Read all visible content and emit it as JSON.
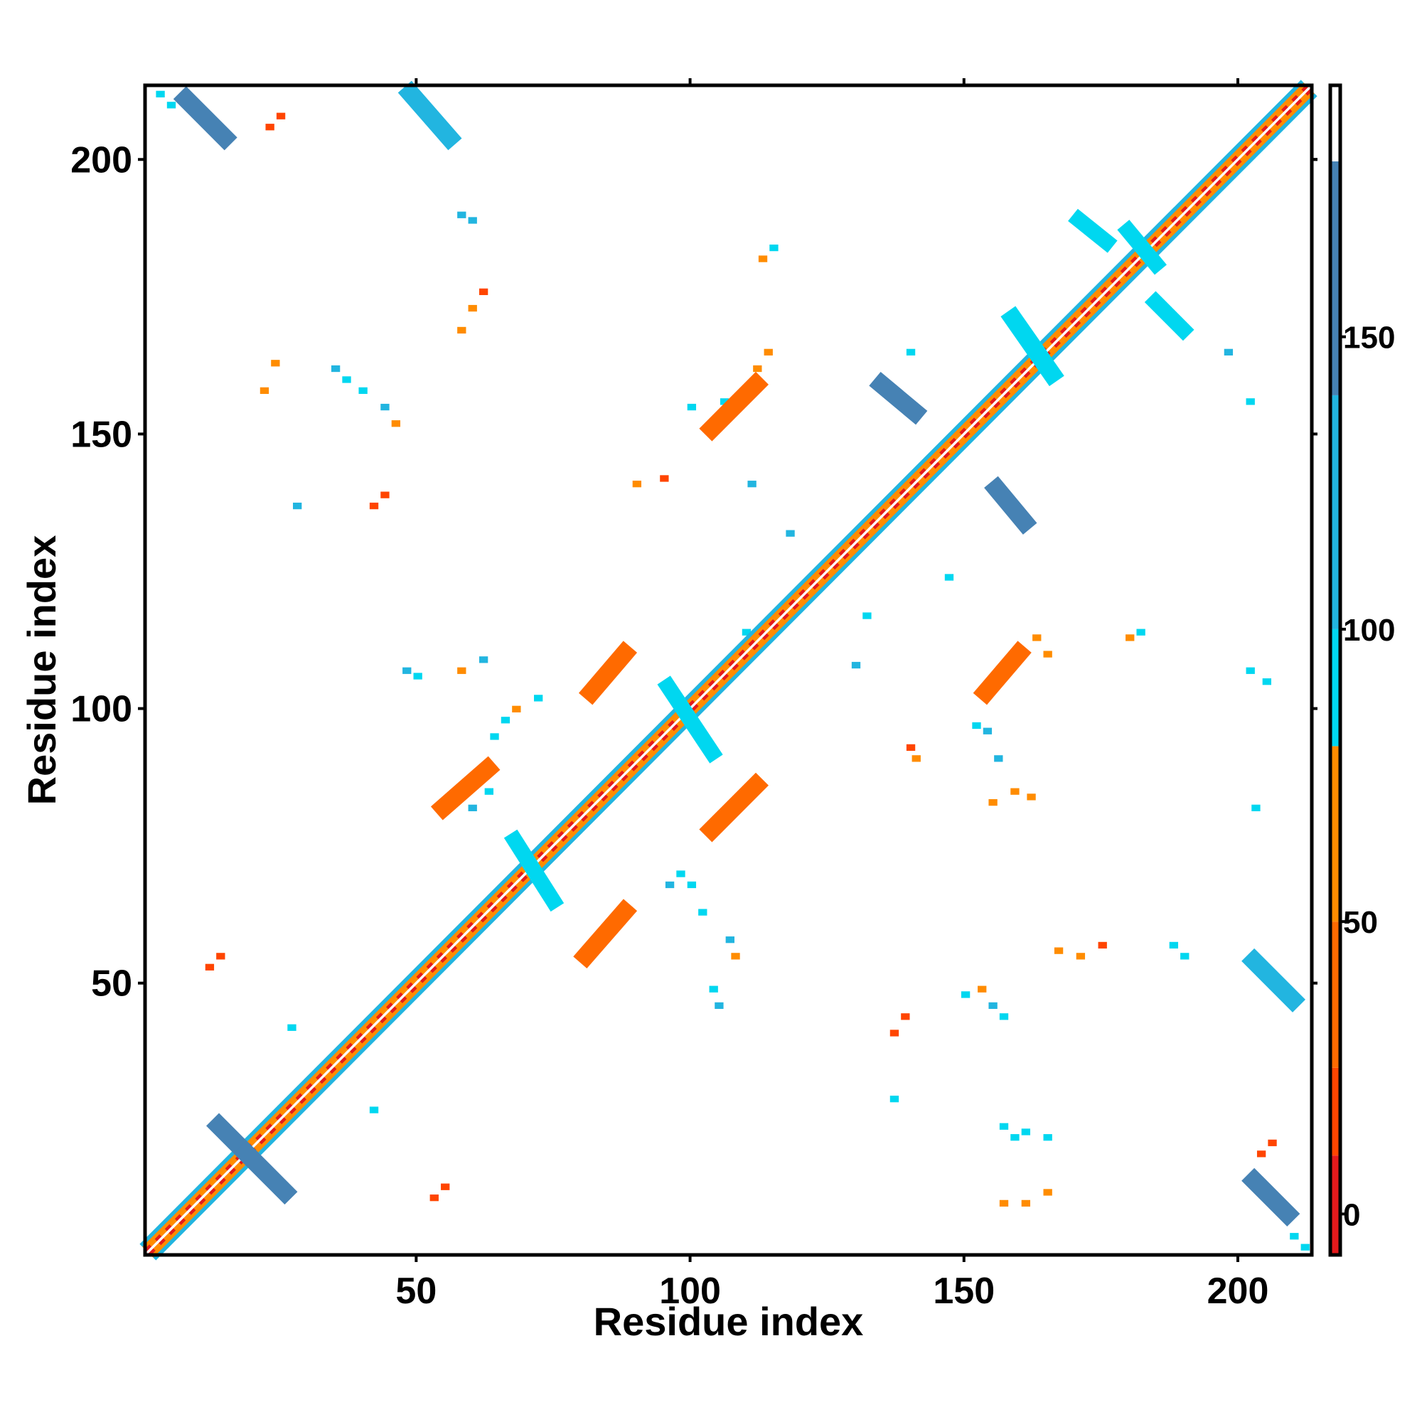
{
  "chart_data": {
    "type": "heatmap",
    "title": "",
    "xlabel": "Residue index",
    "ylabel": "Residue index",
    "xlim": [
      1,
      213
    ],
    "ylim": [
      1,
      213
    ],
    "xticks": [
      50,
      100,
      150,
      200
    ],
    "yticks": [
      50,
      100,
      150,
      200
    ],
    "colorbar": {
      "range": [
        -7,
        193
      ],
      "ticks": [
        0,
        50,
        100,
        150
      ],
      "bands": [
        {
          "from": -7,
          "to": 10,
          "color": "#e41a1c"
        },
        {
          "from": 10,
          "to": 25,
          "color": "#ff4500"
        },
        {
          "from": 25,
          "to": 50,
          "color": "#ff6a00"
        },
        {
          "from": 50,
          "to": 80,
          "color": "#ff8c00"
        },
        {
          "from": 80,
          "to": 100,
          "color": "#00d7f0"
        },
        {
          "from": 100,
          "to": 140,
          "color": "#22b5e0"
        },
        {
          "from": 140,
          "to": 180,
          "color": "#4682b4"
        },
        {
          "from": 180,
          "to": 193,
          "color": "#ffffff"
        }
      ]
    },
    "diagonal": {
      "from": 1,
      "to": 213,
      "value": 40
    },
    "segments": [
      {
        "x": [
          14,
          19
        ],
        "y": [
          24,
          19
        ],
        "w": 1.5,
        "value": 160
      },
      {
        "x": [
          19,
          26
        ],
        "y": [
          19,
          12
        ],
        "w": 1.5,
        "value": 160
      },
      {
        "x": [
          8,
          15
        ],
        "y": [
          211,
          204
        ],
        "w": 1.5,
        "value": 160
      },
      {
        "x": [
          49,
          56
        ],
        "y": [
          212,
          204
        ],
        "w": 1.5,
        "value": 115
      },
      {
        "x": [
          81,
          88
        ],
        "y": [
          55,
          63
        ],
        "w": 1.5,
        "value": 40
      },
      {
        "x": [
          55,
          63
        ],
        "y": [
          82,
          89
        ],
        "w": 1.5,
        "value": 40
      },
      {
        "x": [
          104,
          112
        ],
        "y": [
          78,
          86
        ],
        "w": 1.5,
        "value": 40
      },
      {
        "x": [
          82,
          88
        ],
        "y": [
          103,
          110
        ],
        "w": 1.5,
        "value": 40
      },
      {
        "x": [
          104,
          112
        ],
        "y": [
          151,
          159
        ],
        "w": 1.5,
        "value": 40
      },
      {
        "x": [
          154,
          160
        ],
        "y": [
          103,
          110
        ],
        "w": 1.5,
        "value": 40
      },
      {
        "x": [
          135,
          141
        ],
        "y": [
          159,
          154
        ],
        "w": 1.5,
        "value": 160
      },
      {
        "x": [
          156,
          161
        ],
        "y": [
          140,
          134
        ],
        "w": 1.5,
        "value": 160
      },
      {
        "x": [
          203,
          210
        ],
        "y": [
          54,
          47
        ],
        "w": 1.5,
        "value": 115
      },
      {
        "x": [
          203,
          209
        ],
        "y": [
          14,
          8
        ],
        "w": 1.5,
        "value": 160
      },
      {
        "x": [
          68,
          75
        ],
        "y": [
          76,
          65
        ],
        "w": 1.3,
        "value": 90
      },
      {
        "x": [
          96,
          104
        ],
        "y": [
          104,
          92
        ],
        "w": 1.3,
        "value": 90
      },
      {
        "x": [
          159,
          166
        ],
        "y": [
          171,
          161
        ],
        "w": 1.5,
        "value": 90
      },
      {
        "x": [
          180,
          185
        ],
        "y": [
          187,
          181
        ],
        "w": 1.3,
        "value": 90
      },
      {
        "x": [
          171,
          176
        ],
        "y": [
          189,
          185
        ],
        "w": 1.3,
        "value": 90
      },
      {
        "x": [
          185,
          190
        ],
        "y": [
          174,
          169
        ],
        "w": 1.3,
        "value": 90
      }
    ],
    "cells": [
      [
        3,
        212,
        90
      ],
      [
        5,
        210,
        90
      ],
      [
        23,
        206,
        20
      ],
      [
        25,
        208,
        20
      ],
      [
        58,
        190,
        115
      ],
      [
        60,
        189,
        115
      ],
      [
        113,
        182,
        60
      ],
      [
        115,
        184,
        90
      ],
      [
        60,
        173,
        60
      ],
      [
        58,
        169,
        60
      ],
      [
        62,
        176,
        20
      ],
      [
        24,
        163,
        60
      ],
      [
        22,
        158,
        60
      ],
      [
        35,
        162,
        115
      ],
      [
        37,
        160,
        90
      ],
      [
        40,
        158,
        90
      ],
      [
        44,
        155,
        115
      ],
      [
        46,
        152,
        60
      ],
      [
        112,
        162,
        60
      ],
      [
        114,
        165,
        60
      ],
      [
        106,
        156,
        90
      ],
      [
        100,
        155,
        90
      ],
      [
        90,
        141,
        60
      ],
      [
        95,
        142,
        20
      ],
      [
        44,
        139,
        20
      ],
      [
        42,
        137,
        20
      ],
      [
        28,
        137,
        115
      ],
      [
        118,
        132,
        115
      ],
      [
        111,
        141,
        115
      ],
      [
        140,
        165,
        90
      ],
      [
        198,
        165,
        115
      ],
      [
        202,
        156,
        90
      ],
      [
        48,
        107,
        115
      ],
      [
        50,
        106,
        90
      ],
      [
        58,
        107,
        60
      ],
      [
        62,
        109,
        115
      ],
      [
        66,
        98,
        90
      ],
      [
        64,
        95,
        90
      ],
      [
        68,
        100,
        60
      ],
      [
        63,
        85,
        90
      ],
      [
        60,
        82,
        115
      ],
      [
        72,
        102,
        90
      ],
      [
        98,
        70,
        90
      ],
      [
        96,
        68,
        115
      ],
      [
        100,
        68,
        90
      ],
      [
        102,
        63,
        90
      ],
      [
        107,
        58,
        115
      ],
      [
        108,
        55,
        60
      ],
      [
        104,
        49,
        90
      ],
      [
        105,
        46,
        115
      ],
      [
        110,
        114,
        90
      ],
      [
        132,
        117,
        90
      ],
      [
        140,
        93,
        20
      ],
      [
        141,
        91,
        60
      ],
      [
        152,
        97,
        90
      ],
      [
        154,
        96,
        115
      ],
      [
        156,
        91,
        115
      ],
      [
        155,
        83,
        60
      ],
      [
        159,
        85,
        60
      ],
      [
        162,
        84,
        60
      ],
      [
        163,
        113,
        60
      ],
      [
        165,
        110,
        60
      ],
      [
        180,
        113,
        60
      ],
      [
        182,
        114,
        90
      ],
      [
        202,
        107,
        90
      ],
      [
        205,
        105,
        90
      ],
      [
        203,
        82,
        90
      ],
      [
        167,
        56,
        60
      ],
      [
        171,
        55,
        60
      ],
      [
        175,
        57,
        20
      ],
      [
        188,
        57,
        90
      ],
      [
        190,
        55,
        90
      ],
      [
        150,
        48,
        90
      ],
      [
        153,
        49,
        60
      ],
      [
        155,
        46,
        115
      ],
      [
        157,
        44,
        90
      ],
      [
        139,
        44,
        20
      ],
      [
        137,
        41,
        20
      ],
      [
        137,
        29,
        90
      ],
      [
        157,
        24,
        90
      ],
      [
        159,
        22,
        90
      ],
      [
        161,
        23,
        90
      ],
      [
        165,
        22,
        90
      ],
      [
        157,
        10,
        60
      ],
      [
        161,
        10,
        60
      ],
      [
        165,
        12,
        60
      ],
      [
        206,
        21,
        20
      ],
      [
        204,
        19,
        20
      ],
      [
        210,
        4,
        90
      ],
      [
        212,
        2,
        90
      ],
      [
        53,
        11,
        20
      ],
      [
        55,
        13,
        20
      ],
      [
        12,
        53,
        20
      ],
      [
        14,
        55,
        20
      ],
      [
        27,
        42,
        90
      ],
      [
        42,
        27,
        90
      ],
      [
        121,
        121,
        115
      ],
      [
        130,
        108,
        115
      ],
      [
        147,
        124,
        90
      ]
    ]
  }
}
